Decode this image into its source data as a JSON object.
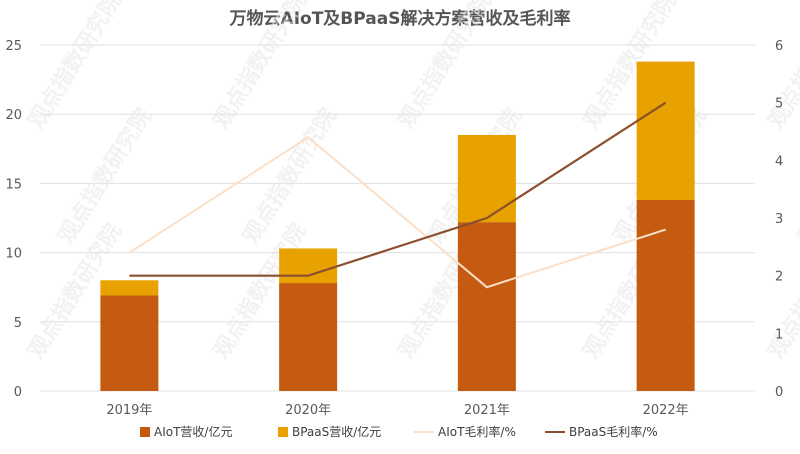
{
  "chart_data": {
    "type": "bar",
    "title": "万物云AIoT及BPaaS解决方案营收及毛利率",
    "categories": [
      "2019年",
      "2020年",
      "2021年",
      "2022年"
    ],
    "stacked": true,
    "series": [
      {
        "name": "AIoT营收/亿元",
        "type": "bar",
        "axis": "left",
        "color": "#C55A11",
        "values": [
          6.9,
          7.8,
          12.2,
          13.8
        ]
      },
      {
        "name": "BPaaS营收/亿元",
        "type": "bar",
        "axis": "left",
        "color": "#E8A200",
        "values": [
          1.1,
          2.5,
          6.3,
          10.0
        ]
      },
      {
        "name": "AIoT毛利率/%",
        "type": "line",
        "axis": "right",
        "color": "#FAE0C8",
        "values": [
          2.4,
          4.4,
          1.8,
          2.8
        ]
      },
      {
        "name": "BPaaS毛利率/%",
        "type": "line",
        "axis": "right",
        "color": "#8B4F2E",
        "values": [
          2.0,
          2.0,
          3.0,
          5.0
        ]
      }
    ],
    "left_axis": {
      "min": 0,
      "max": 25,
      "ticks": [
        0,
        5,
        10,
        15,
        20,
        25
      ]
    },
    "right_axis": {
      "min": 0,
      "max": 6,
      "ticks": [
        0,
        1,
        2,
        3,
        4,
        5,
        6
      ]
    },
    "grid": true,
    "legend_position": "bottom",
    "watermark": "观点指数研究院"
  }
}
